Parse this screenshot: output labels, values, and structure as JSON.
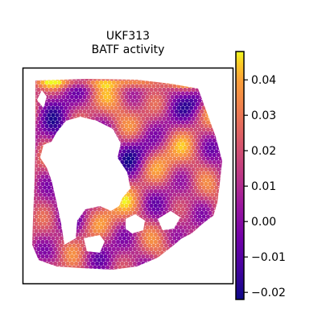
{
  "chart_data": {
    "type": "heatmap",
    "title_lines": [
      "UKF313",
      "BATF activity"
    ],
    "colormap": "plasma",
    "colorbar": {
      "range": [
        -0.022,
        0.048
      ],
      "ticks": [
        -0.02,
        -0.01,
        0.0,
        0.01,
        0.02,
        0.03,
        0.04
      ],
      "tick_labels": [
        "−0.02",
        "−0.01",
        "0.00",
        "0.01",
        "0.02",
        "0.03",
        "0.04"
      ]
    },
    "axes": {
      "xticks": "none",
      "yticks": "none",
      "frame": true
    },
    "grid": false
  }
}
